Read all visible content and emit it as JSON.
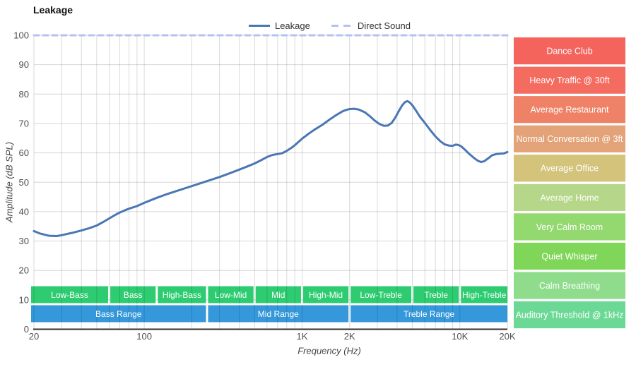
{
  "title": "Leakage",
  "chart_data": {
    "type": "line",
    "title": "Leakage",
    "xlabel": "Frequency (Hz)",
    "ylabel": "Amplitude (dB SPL)",
    "x_scale": "log",
    "xlim": [
      20,
      20000
    ],
    "ylim": [
      0,
      100
    ],
    "grid": true,
    "legend_position": "top-center",
    "x_ticks": [
      {
        "value": 20,
        "label": "20"
      },
      {
        "value": 100,
        "label": "100"
      },
      {
        "value": 1000,
        "label": "1K"
      },
      {
        "value": 2000,
        "label": "2K"
      },
      {
        "value": 10000,
        "label": "10K"
      },
      {
        "value": 20000,
        "label": "20K"
      }
    ],
    "y_ticks": [
      0,
      10,
      20,
      30,
      40,
      50,
      60,
      70,
      80,
      90,
      100
    ],
    "grid_frequencies": [
      20,
      30,
      40,
      50,
      60,
      70,
      80,
      90,
      100,
      200,
      300,
      400,
      500,
      600,
      700,
      800,
      900,
      1000,
      2000,
      3000,
      4000,
      5000,
      6000,
      7000,
      8000,
      9000,
      10000,
      20000
    ],
    "series": [
      {
        "name": "Leakage",
        "color": "#4a77b4",
        "line_style": "solid",
        "points": [
          [
            20,
            33.4
          ],
          [
            22,
            32.5
          ],
          [
            25,
            31.8
          ],
          [
            28,
            31.7
          ],
          [
            30,
            32.0
          ],
          [
            35,
            32.8
          ],
          [
            40,
            33.6
          ],
          [
            45,
            34.4
          ],
          [
            50,
            35.3
          ],
          [
            55,
            36.5
          ],
          [
            60,
            37.7
          ],
          [
            65,
            38.8
          ],
          [
            70,
            39.7
          ],
          [
            75,
            40.4
          ],
          [
            80,
            41.0
          ],
          [
            90,
            41.9
          ],
          [
            100,
            43.0
          ],
          [
            110,
            43.9
          ],
          [
            120,
            44.7
          ],
          [
            140,
            46.0
          ],
          [
            160,
            47.0
          ],
          [
            180,
            47.9
          ],
          [
            200,
            48.7
          ],
          [
            225,
            49.6
          ],
          [
            250,
            50.4
          ],
          [
            300,
            51.8
          ],
          [
            350,
            53.1
          ],
          [
            400,
            54.3
          ],
          [
            450,
            55.4
          ],
          [
            500,
            56.4
          ],
          [
            550,
            57.5
          ],
          [
            600,
            58.6
          ],
          [
            650,
            59.3
          ],
          [
            700,
            59.6
          ],
          [
            750,
            59.9
          ],
          [
            800,
            60.7
          ],
          [
            850,
            61.6
          ],
          [
            900,
            62.6
          ],
          [
            1000,
            64.8
          ],
          [
            1100,
            66.5
          ],
          [
            1200,
            67.9
          ],
          [
            1350,
            69.6
          ],
          [
            1500,
            71.4
          ],
          [
            1650,
            72.9
          ],
          [
            1800,
            74.1
          ],
          [
            1900,
            74.6
          ],
          [
            2000,
            74.9
          ],
          [
            2150,
            75.0
          ],
          [
            2300,
            74.7
          ],
          [
            2500,
            73.8
          ],
          [
            2700,
            72.4
          ],
          [
            2900,
            70.9
          ],
          [
            3100,
            69.8
          ],
          [
            3300,
            69.2
          ],
          [
            3500,
            69.3
          ],
          [
            3700,
            70.2
          ],
          [
            3900,
            72.0
          ],
          [
            4100,
            74.2
          ],
          [
            4300,
            76.1
          ],
          [
            4500,
            77.3
          ],
          [
            4650,
            77.6
          ],
          [
            4800,
            77.2
          ],
          [
            5000,
            76.2
          ],
          [
            5300,
            74.2
          ],
          [
            5600,
            72.2
          ],
          [
            6000,
            70.2
          ],
          [
            6500,
            67.7
          ],
          [
            7000,
            65.6
          ],
          [
            7500,
            64.0
          ],
          [
            8000,
            62.9
          ],
          [
            8500,
            62.5
          ],
          [
            9000,
            62.4
          ],
          [
            9400,
            62.8
          ],
          [
            9800,
            62.7
          ],
          [
            10200,
            62.2
          ],
          [
            10800,
            61.0
          ],
          [
            11500,
            59.6
          ],
          [
            12200,
            58.4
          ],
          [
            13000,
            57.3
          ],
          [
            13600,
            56.9
          ],
          [
            14200,
            57.1
          ],
          [
            15000,
            58.0
          ],
          [
            16000,
            59.2
          ],
          [
            17000,
            59.6
          ],
          [
            18000,
            59.7
          ],
          [
            19000,
            59.8
          ],
          [
            20000,
            60.3
          ]
        ]
      },
      {
        "name": "Direct Sound",
        "color": "#b4c2f0",
        "line_style": "dashed",
        "points": [
          [
            20,
            100
          ],
          [
            20000,
            100
          ]
        ]
      }
    ],
    "frequency_bands": {
      "sub_bands": {
        "color": "#2ecc71",
        "text_color": "#ffffff",
        "items": [
          {
            "label": "Low-Bass",
            "from": 20,
            "to": 60
          },
          {
            "label": "Bass",
            "from": 60,
            "to": 120
          },
          {
            "label": "High-Bass",
            "from": 120,
            "to": 250
          },
          {
            "label": "Low-Mid",
            "from": 250,
            "to": 500
          },
          {
            "label": "Mid",
            "from": 500,
            "to": 1000
          },
          {
            "label": "High-Mid",
            "from": 1000,
            "to": 2000
          },
          {
            "label": "Low-Treble",
            "from": 2000,
            "to": 5000
          },
          {
            "label": "Treble",
            "from": 5000,
            "to": 10000
          },
          {
            "label": "High-Treble",
            "from": 10000,
            "to": 20000
          }
        ]
      },
      "ranges": {
        "color": "#3498db",
        "text_color": "#ffffff",
        "items": [
          {
            "label": "Bass Range",
            "from": 20,
            "to": 250
          },
          {
            "label": "Mid Range",
            "from": 250,
            "to": 2000
          },
          {
            "label": "Treble Range",
            "from": 2000,
            "to": 20000
          }
        ]
      }
    },
    "loudness_scale": [
      {
        "label": "Dance Club",
        "db_from": 90,
        "db_to": 100,
        "color": "#f4645c"
      },
      {
        "label": "Heavy Traffic @ 30ft",
        "db_from": 80,
        "db_to": 90,
        "color": "#f46b60"
      },
      {
        "label": "Average Restaurant",
        "db_from": 70,
        "db_to": 80,
        "color": "#ef8166"
      },
      {
        "label": "Normal Conversation @ 3ft",
        "db_from": 60,
        "db_to": 70,
        "color": "#e3a278"
      },
      {
        "label": "Average Office",
        "db_from": 50,
        "db_to": 60,
        "color": "#d3c37b"
      },
      {
        "label": "Average Home",
        "db_from": 40,
        "db_to": 50,
        "color": "#b6d689"
      },
      {
        "label": "Very Calm Room",
        "db_from": 30,
        "db_to": 40,
        "color": "#93d96f"
      },
      {
        "label": "Quiet Whisper",
        "db_from": 20,
        "db_to": 30,
        "color": "#80d658"
      },
      {
        "label": "Calm Breathing",
        "db_from": 10,
        "db_to": 20,
        "color": "#8edc8c"
      },
      {
        "label": "Auditory Threshold @ 1kHz",
        "db_from": 0,
        "db_to": 10,
        "color": "#6bd995"
      }
    ]
  }
}
